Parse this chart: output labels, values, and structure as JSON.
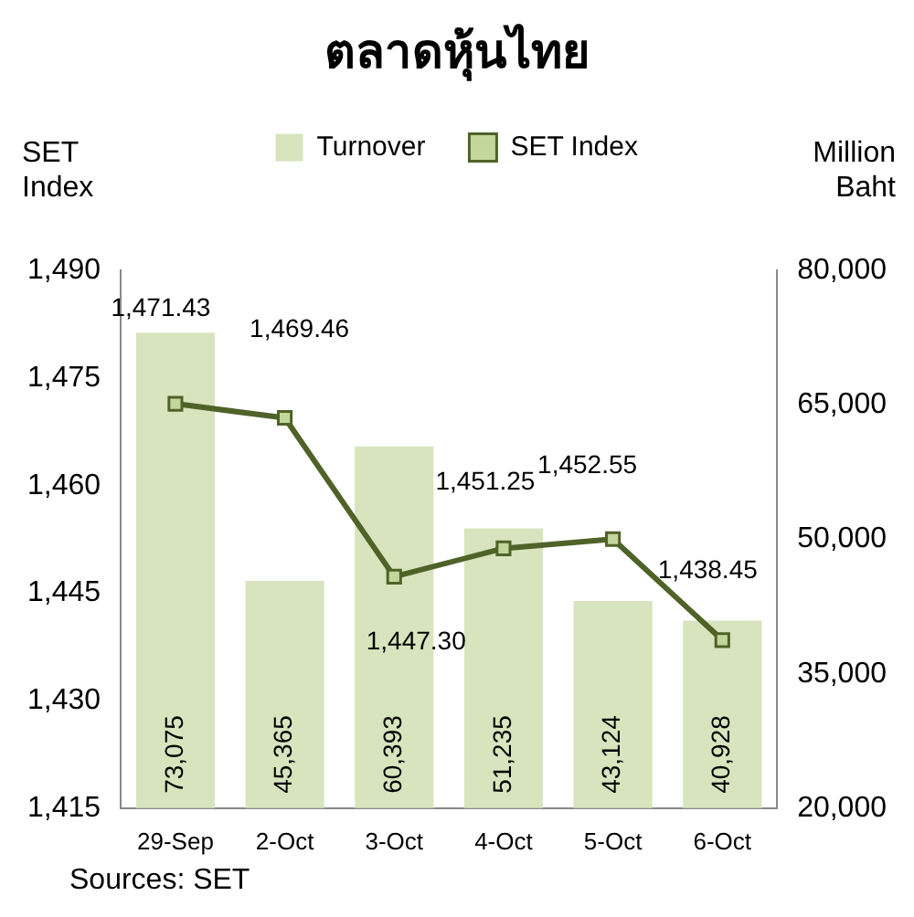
{
  "chart_data": {
    "type": "bar",
    "title": "ตลาดหุ้นไทย",
    "ylabel": "SET Index",
    "y2label": "Million Baht",
    "categories": [
      "29-Sep",
      "2-Oct",
      "3-Oct",
      "4-Oct",
      "5-Oct",
      "6-Oct"
    ],
    "series": [
      {
        "name": "Turnover",
        "axis": "y2",
        "color": "#d7e4bd",
        "values": [
          73075,
          45365,
          60393,
          51235,
          43124,
          40928
        ],
        "value_labels": [
          "73,075",
          "45,365",
          "60,393",
          "51,235",
          "43,124",
          "40,928"
        ]
      },
      {
        "name": "SET Index",
        "type": "line",
        "color": "#4f6228",
        "values": [
          1471.43,
          1469.46,
          1447.3,
          1451.25,
          1452.55,
          1438.45
        ],
        "value_labels": [
          "1,471.43",
          "1,469.46",
          "1,447.30",
          "1,451.25",
          "1,452.55",
          "1,438.45"
        ]
      }
    ],
    "ylim": [
      1415,
      1490
    ],
    "yticks": [
      {
        "value": 1415,
        "label": "1,415"
      },
      {
        "value": 1430,
        "label": "1,430"
      },
      {
        "value": 1445,
        "label": "1,445"
      },
      {
        "value": 1460,
        "label": "1,460"
      },
      {
        "value": 1475,
        "label": "1,475"
      },
      {
        "value": 1490,
        "label": "1,490"
      }
    ],
    "y2lim": [
      20000,
      80000
    ],
    "y2ticks": [
      {
        "value": 20000,
        "label": "20,000"
      },
      {
        "value": 35000,
        "label": "35,000"
      },
      {
        "value": 50000,
        "label": "50,000"
      },
      {
        "value": 65000,
        "label": "65,000"
      },
      {
        "value": 80000,
        "label": "80,000"
      }
    ],
    "marker": "square",
    "legend": "top",
    "annotations": [
      "Sources: SET"
    ]
  }
}
